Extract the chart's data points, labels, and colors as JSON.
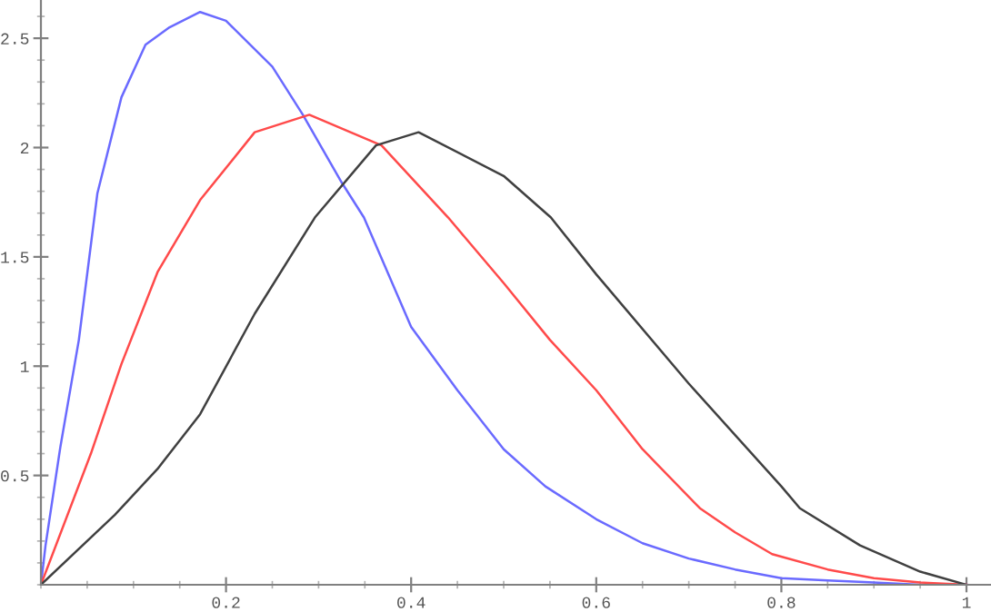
{
  "chart_data": {
    "type": "line",
    "xlim": [
      0,
      1.0265
    ],
    "ylim": [
      0,
      2.675
    ],
    "xticks": [
      0.2,
      0.4,
      0.6,
      0.8,
      1
    ],
    "yticks": [
      0.5,
      1,
      1.5,
      2,
      2.5
    ],
    "grid": false,
    "legend": false,
    "marker": "none",
    "line_style": "solid",
    "series": [
      {
        "color": "#6a6aff",
        "x": [
          0,
          0.005,
          0.021,
          0.041,
          0.061,
          0.087,
          0.113,
          0.139,
          0.172,
          0.2,
          0.25,
          0.283,
          0.325,
          0.349,
          0.4,
          0.45,
          0.5,
          0.545,
          0.6,
          0.65,
          0.7,
          0.75,
          0.8,
          0.85,
          0.9,
          0.95,
          1
        ],
        "values": [
          0,
          0.18,
          0.63,
          1.12,
          1.79,
          2.23,
          2.47,
          2.55,
          2.62,
          2.58,
          2.37,
          2.15,
          1.84,
          1.68,
          1.18,
          0.89,
          0.62,
          0.45,
          0.3,
          0.19,
          0.12,
          0.07,
          0.03,
          0.02,
          0.01,
          0,
          0
        ]
      },
      {
        "color": "#ff4a4a",
        "x": [
          0,
          0.054,
          0.087,
          0.126,
          0.172,
          0.231,
          0.29,
          0.368,
          0.44,
          0.5,
          0.55,
          0.6,
          0.65,
          0.712,
          0.75,
          0.79,
          0.85,
          0.9,
          0.95,
          1
        ],
        "values": [
          0,
          0.6,
          1.01,
          1.43,
          1.76,
          2.07,
          2.15,
          2.01,
          1.68,
          1.38,
          1.12,
          0.89,
          0.62,
          0.35,
          0.24,
          0.14,
          0.07,
          0.03,
          0.01,
          0
        ]
      },
      {
        "color": "#404040",
        "x": [
          0,
          0.08,
          0.126,
          0.172,
          0.231,
          0.296,
          0.362,
          0.408,
          0.5,
          0.551,
          0.6,
          0.7,
          0.8,
          0.82,
          0.885,
          0.95,
          1
        ],
        "values": [
          0,
          0.32,
          0.53,
          0.78,
          1.24,
          1.68,
          2.01,
          2.07,
          1.87,
          1.68,
          1.42,
          0.92,
          0.45,
          0.35,
          0.18,
          0.06,
          0
        ]
      }
    ]
  }
}
